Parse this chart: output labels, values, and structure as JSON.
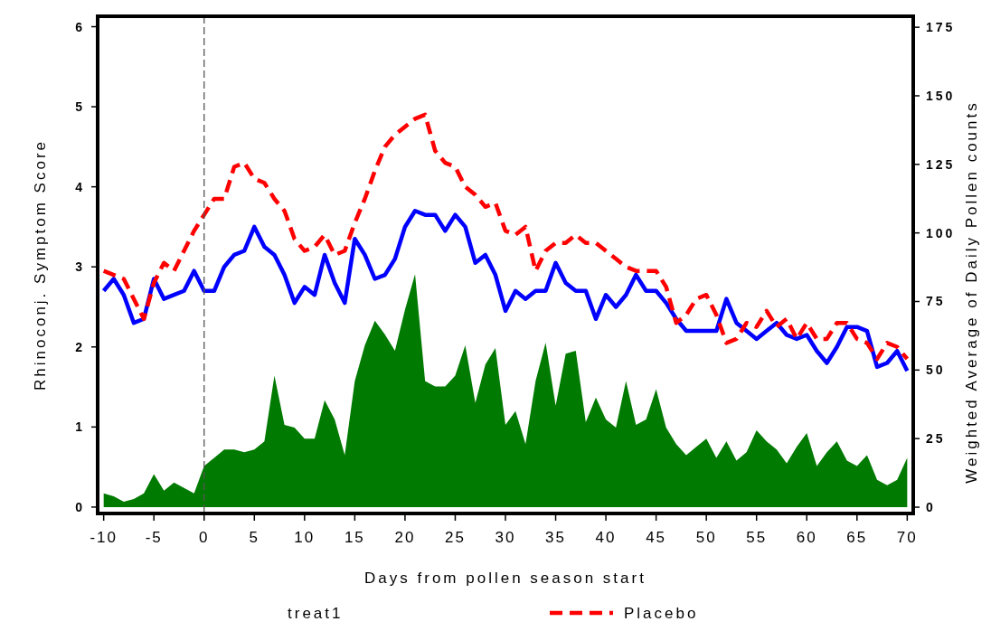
{
  "chart_data": {
    "type": "line",
    "xlabel": "Days from pollen season start",
    "ylabel": "Rhinoconj. Symptom Score",
    "y2label": "Weighted Average of Daily Pollen counts",
    "legend_title": "treat1",
    "legend": "bottom",
    "x": [
      -10,
      -9,
      -8,
      -7,
      -6,
      -5,
      -4,
      -3,
      -2,
      -1,
      0,
      1,
      2,
      3,
      4,
      5,
      6,
      7,
      8,
      9,
      10,
      11,
      12,
      13,
      14,
      15,
      16,
      17,
      18,
      19,
      20,
      21,
      22,
      23,
      24,
      25,
      26,
      27,
      28,
      29,
      30,
      31,
      32,
      33,
      34,
      35,
      36,
      37,
      38,
      39,
      40,
      41,
      42,
      43,
      44,
      45,
      46,
      47,
      48,
      49,
      50,
      51,
      52,
      53,
      54,
      55,
      56,
      57,
      58,
      59,
      60,
      61,
      62,
      63,
      64,
      65,
      66,
      67,
      68,
      69,
      70
    ],
    "series": [
      {
        "type": "area",
        "axis": "y2",
        "color": "#007a00",
        "values": [
          5,
          4,
          2,
          3,
          5,
          12,
          6,
          9,
          7,
          5,
          15,
          18,
          21,
          21,
          20,
          21,
          24,
          48,
          30,
          29,
          25,
          25,
          39,
          32,
          19,
          46,
          59,
          68,
          63,
          57,
          72,
          85,
          46,
          44,
          44,
          48,
          59,
          38,
          52,
          58,
          30,
          35,
          23,
          46,
          60,
          37,
          56,
          57,
          31,
          40,
          32,
          29,
          46,
          30,
          32,
          43,
          29,
          23,
          19,
          22,
          25,
          18,
          24,
          17,
          20,
          28,
          24,
          21,
          16,
          22,
          27,
          15,
          20,
          24,
          17,
          15,
          19,
          10,
          8,
          10,
          18
        ]
      },
      {
        "color": "#0000ff",
        "line_style": "solid",
        "values": [
          2.7,
          2.85,
          2.65,
          2.3,
          2.35,
          2.85,
          2.6,
          2.65,
          2.7,
          2.95,
          2.7,
          2.7,
          3.0,
          3.15,
          3.2,
          3.5,
          3.25,
          3.15,
          2.9,
          2.55,
          2.75,
          2.65,
          3.15,
          2.8,
          2.55,
          3.35,
          3.15,
          2.85,
          2.9,
          3.1,
          3.5,
          3.7,
          3.65,
          3.65,
          3.45,
          3.65,
          3.5,
          3.05,
          3.15,
          2.9,
          2.45,
          2.7,
          2.6,
          2.7,
          2.7,
          3.05,
          2.8,
          2.7,
          2.7,
          2.35,
          2.65,
          2.5,
          2.65,
          2.9,
          2.7,
          2.7,
          2.55,
          2.35,
          2.2,
          2.2,
          2.2,
          2.2,
          2.6,
          2.3,
          2.2,
          2.1,
          2.2,
          2.3,
          2.15,
          2.1,
          2.15,
          1.95,
          1.8,
          2.0,
          2.25,
          2.25,
          2.2,
          1.75,
          1.8,
          1.95,
          1.7
        ]
      },
      {
        "name": "Placebo",
        "color": "#ff0000",
        "line_style": "dashed",
        "values": [
          2.95,
          2.9,
          2.85,
          2.6,
          2.35,
          2.8,
          3.05,
          2.95,
          3.2,
          3.45,
          3.65,
          3.85,
          3.85,
          4.25,
          4.3,
          4.1,
          4.05,
          3.85,
          3.7,
          3.35,
          3.2,
          3.25,
          3.4,
          3.15,
          3.2,
          3.55,
          3.85,
          4.2,
          4.5,
          4.65,
          4.75,
          4.85,
          4.9,
          4.45,
          4.3,
          4.25,
          4.0,
          3.9,
          3.75,
          3.8,
          3.45,
          3.4,
          3.5,
          2.95,
          3.2,
          3.3,
          3.3,
          3.4,
          3.3,
          3.3,
          3.2,
          3.1,
          3.0,
          2.95,
          2.95,
          2.95,
          2.75,
          2.3,
          2.4,
          2.6,
          2.65,
          2.4,
          2.05,
          2.1,
          2.3,
          2.25,
          2.45,
          2.25,
          2.35,
          2.1,
          2.3,
          2.1,
          2.1,
          2.3,
          2.3,
          2.1,
          2.05,
          1.85,
          2.05,
          2.0,
          1.85
        ]
      }
    ],
    "xlim": [
      -10.6,
      70.6
    ],
    "xticks": [
      -10,
      -5,
      0,
      5,
      10,
      15,
      20,
      25,
      30,
      35,
      40,
      45,
      50,
      55,
      60,
      65,
      70
    ],
    "ylim": [
      -0.08,
      6.13
    ],
    "yticks": [
      0,
      1,
      2,
      3,
      4,
      5,
      6
    ],
    "y2lim": [
      -2.3,
      179
    ],
    "y2ticks": [
      0,
      25,
      50,
      75,
      100,
      125,
      150,
      175
    ],
    "ref_lines": [
      {
        "axis": "x",
        "value": 0,
        "color": "#555555",
        "line_style": "dashed"
      }
    ],
    "grid": false
  }
}
